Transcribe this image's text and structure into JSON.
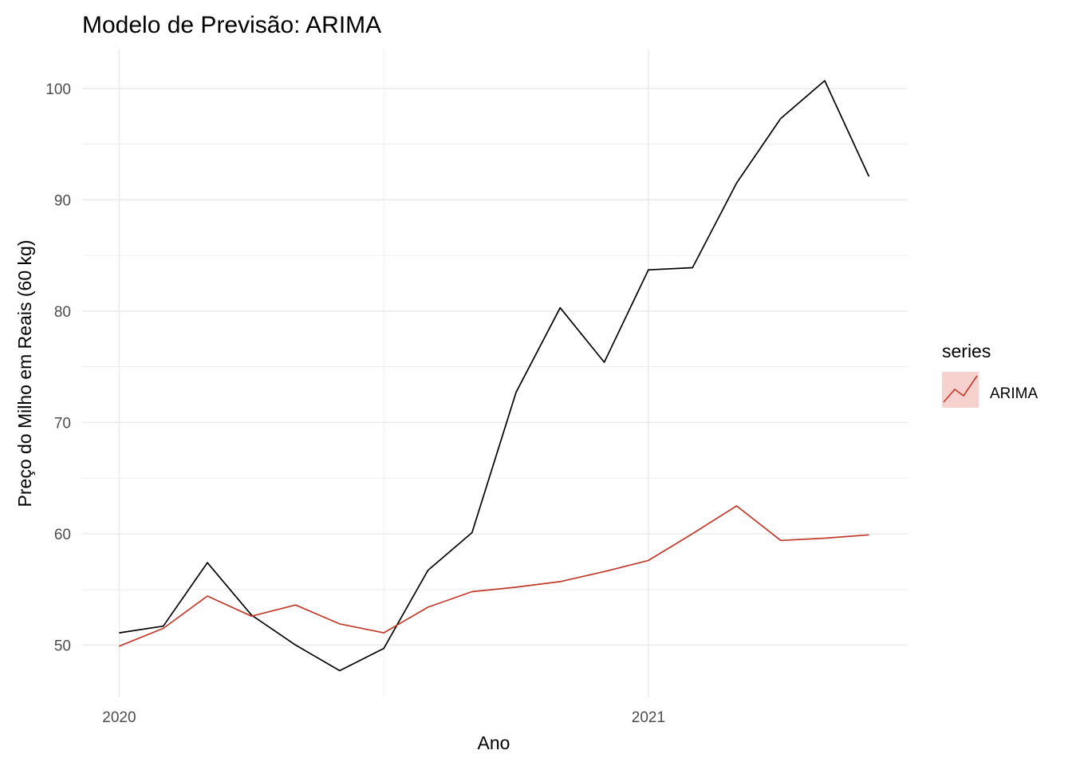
{
  "chart_data": {
    "type": "line",
    "title": "Modelo de Previsão: ARIMA",
    "xlabel": "Ano",
    "ylabel": "Preço do Milho em Reais (60 kg)",
    "x_ticks": [
      {
        "value": 2020,
        "label": "2020"
      },
      {
        "value": 2021,
        "label": "2021"
      }
    ],
    "y_ticks": [
      50,
      60,
      70,
      80,
      90,
      100
    ],
    "xlim": [
      2019.93,
      2021.49
    ],
    "ylim": [
      45.3,
      103.5
    ],
    "grid": true,
    "x": [
      2020.0,
      2020.0833,
      2020.1667,
      2020.25,
      2020.3333,
      2020.4167,
      2020.5,
      2020.5833,
      2020.6667,
      2020.75,
      2020.8333,
      2020.9167,
      2021.0,
      2021.0833,
      2021.1667,
      2021.25,
      2021.3333,
      2021.4167
    ],
    "series": [
      {
        "values": [
          51.1,
          51.7,
          57.4,
          52.7,
          50.0,
          47.7,
          49.7,
          56.7,
          60.1,
          72.7,
          80.3,
          75.4,
          83.7,
          83.9,
          91.5,
          97.3,
          100.7,
          92.1
        ],
        "color": "#000000"
      },
      {
        "name": "ARIMA",
        "values": [
          49.9,
          51.5,
          54.4,
          52.6,
          53.6,
          51.9,
          51.1,
          53.4,
          54.8,
          55.2,
          55.7,
          56.6,
          57.6,
          60.0,
          62.5,
          59.4,
          59.6,
          59.9
        ],
        "color": "#c0392b"
      }
    ],
    "legend": {
      "title": "series",
      "position": "right",
      "entries": [
        {
          "label": "ARIMA",
          "color": "#c0392b",
          "fill": "#f7d1cd"
        }
      ]
    }
  }
}
